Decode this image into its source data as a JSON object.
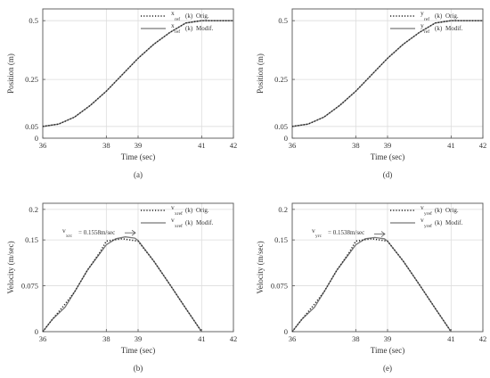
{
  "chart_data": [
    {
      "type": "line",
      "caption": "(a)",
      "xlabel": "Time (sec)",
      "ylabel": "Position (m)",
      "xlim": [
        36,
        42
      ],
      "ylim": [
        0,
        0.55
      ],
      "xticks": [
        "36",
        "38",
        "39",
        "41",
        "42"
      ],
      "yticks": [
        "0",
        "0.05",
        "0.25",
        "0.5"
      ],
      "grid": true,
      "legend_position": "top-right",
      "legend": [
        {
          "sym": "x",
          "sub": "ref",
          "arg": "(k)",
          "text": "Orig."
        },
        {
          "sym": "x",
          "sub": "ref",
          "arg": "(k)",
          "text": "Modif."
        }
      ],
      "series": [
        {
          "name": "Orig.",
          "style": "dotted",
          "x": [
            36,
            36.5,
            37,
            37.5,
            38,
            38.5,
            39,
            39.5,
            40,
            40.5,
            41,
            42
          ],
          "y": [
            0.05,
            0.06,
            0.09,
            0.14,
            0.2,
            0.27,
            0.34,
            0.4,
            0.45,
            0.49,
            0.5,
            0.5
          ]
        },
        {
          "name": "Modif.",
          "style": "solid",
          "x": [
            36,
            36.5,
            37,
            37.5,
            38,
            38.5,
            39,
            39.5,
            40,
            40.5,
            41,
            42
          ],
          "y": [
            0.05,
            0.06,
            0.09,
            0.14,
            0.2,
            0.27,
            0.34,
            0.4,
            0.45,
            0.49,
            0.5,
            0.5
          ]
        }
      ]
    },
    {
      "type": "line",
      "caption": "(d)",
      "xlabel": "Time (sec)",
      "ylabel": "Position (m)",
      "xlim": [
        36,
        42
      ],
      "ylim": [
        0,
        0.55
      ],
      "xticks": [
        "36",
        "38",
        "39",
        "41",
        "42"
      ],
      "yticks": [
        "0",
        "0.05",
        "0.25",
        "0.5"
      ],
      "grid": true,
      "legend_position": "top-right",
      "legend": [
        {
          "sym": "y",
          "sub": "ref",
          "arg": "(k)",
          "text": "Orig."
        },
        {
          "sym": "y",
          "sub": "ref",
          "arg": "(k)",
          "text": "Modif."
        }
      ],
      "series": [
        {
          "name": "Orig.",
          "style": "dotted",
          "x": [
            36,
            36.5,
            37,
            37.5,
            38,
            38.5,
            39,
            39.5,
            40,
            40.5,
            41,
            42
          ],
          "y": [
            0.05,
            0.06,
            0.09,
            0.14,
            0.2,
            0.27,
            0.34,
            0.4,
            0.45,
            0.49,
            0.5,
            0.5
          ]
        },
        {
          "name": "Modif.",
          "style": "solid",
          "x": [
            36,
            36.5,
            37,
            37.5,
            38,
            38.5,
            39,
            39.5,
            40,
            40.5,
            41,
            42
          ],
          "y": [
            0.05,
            0.06,
            0.09,
            0.14,
            0.2,
            0.27,
            0.34,
            0.4,
            0.45,
            0.49,
            0.5,
            0.5
          ]
        }
      ]
    },
    {
      "type": "line",
      "caption": "(b)",
      "xlabel": "Time (sec)",
      "ylabel": "Velocity (m/sec)",
      "xlim": [
        36,
        42
      ],
      "ylim": [
        0,
        0.21
      ],
      "xticks": [
        "36",
        "38",
        "39",
        "41",
        "42"
      ],
      "yticks": [
        "0",
        "0.075",
        "0.15",
        "0.2"
      ],
      "grid": true,
      "legend_position": "top-right",
      "legend": [
        {
          "sym": "v",
          "sub": "xref",
          "arg": "(k)",
          "text": "Orig."
        },
        {
          "sym": "v",
          "sub": "xref",
          "arg": "(k)",
          "text": "Modif."
        }
      ],
      "annotation": {
        "sym": "v",
        "sub": "xrc",
        "text": "= 0.1558m/sec",
        "x": 39,
        "y": 0.1558
      },
      "series": [
        {
          "name": "Orig.",
          "style": "dotted",
          "x": [
            36,
            36.3,
            36.7,
            37,
            37.4,
            37.8,
            38,
            38.5,
            39,
            39.5,
            40,
            40.5,
            41
          ],
          "y": [
            0,
            0.02,
            0.045,
            0.065,
            0.1,
            0.13,
            0.148,
            0.152,
            0.148,
            0.115,
            0.077,
            0.038,
            0
          ]
        },
        {
          "name": "Modif.",
          "style": "solid",
          "x": [
            36,
            36.3,
            36.7,
            37,
            37.4,
            37.8,
            38,
            38.3,
            38.6,
            38.9,
            39,
            39.5,
            40,
            40.5,
            41
          ],
          "y": [
            0,
            0.02,
            0.04,
            0.065,
            0.1,
            0.128,
            0.142,
            0.152,
            0.155,
            0.153,
            0.149,
            0.115,
            0.077,
            0.038,
            0
          ]
        }
      ]
    },
    {
      "type": "line",
      "caption": "(e)",
      "xlabel": "Time (sec)",
      "ylabel": "Velocity (m/sec)",
      "xlim": [
        36,
        42
      ],
      "ylim": [
        0,
        0.21
      ],
      "xticks": [
        "36",
        "38",
        "39",
        "41",
        "42"
      ],
      "yticks": [
        "0",
        "0.075",
        "0.15",
        "0.2"
      ],
      "grid": true,
      "legend_position": "top-right",
      "legend": [
        {
          "sym": "v",
          "sub": "yref",
          "arg": "(k)",
          "text": "Orig."
        },
        {
          "sym": "v",
          "sub": "yref",
          "arg": "(k)",
          "text": "Modif."
        }
      ],
      "annotation": {
        "sym": "v",
        "sub": "yrc",
        "text": "= 0.1538m/sec",
        "x": 39,
        "y": 0.1538
      },
      "series": [
        {
          "name": "Orig.",
          "style": "dotted",
          "x": [
            36,
            36.3,
            36.7,
            37,
            37.4,
            37.8,
            38,
            38.5,
            39,
            39.5,
            40,
            40.5,
            41
          ],
          "y": [
            0,
            0.02,
            0.045,
            0.065,
            0.1,
            0.13,
            0.148,
            0.152,
            0.148,
            0.115,
            0.077,
            0.038,
            0
          ]
        },
        {
          "name": "Modif.",
          "style": "solid",
          "x": [
            36,
            36.3,
            36.7,
            37,
            37.4,
            37.8,
            38,
            38.3,
            38.6,
            38.9,
            39,
            39.5,
            40,
            40.5,
            41
          ],
          "y": [
            0,
            0.02,
            0.04,
            0.065,
            0.1,
            0.128,
            0.142,
            0.152,
            0.154,
            0.152,
            0.148,
            0.115,
            0.077,
            0.038,
            0
          ]
        }
      ]
    }
  ],
  "colors": {
    "axis": "#555555",
    "grid": "#dddddd",
    "line": "#777777",
    "dotted": "#222222",
    "text": "#333333"
  }
}
